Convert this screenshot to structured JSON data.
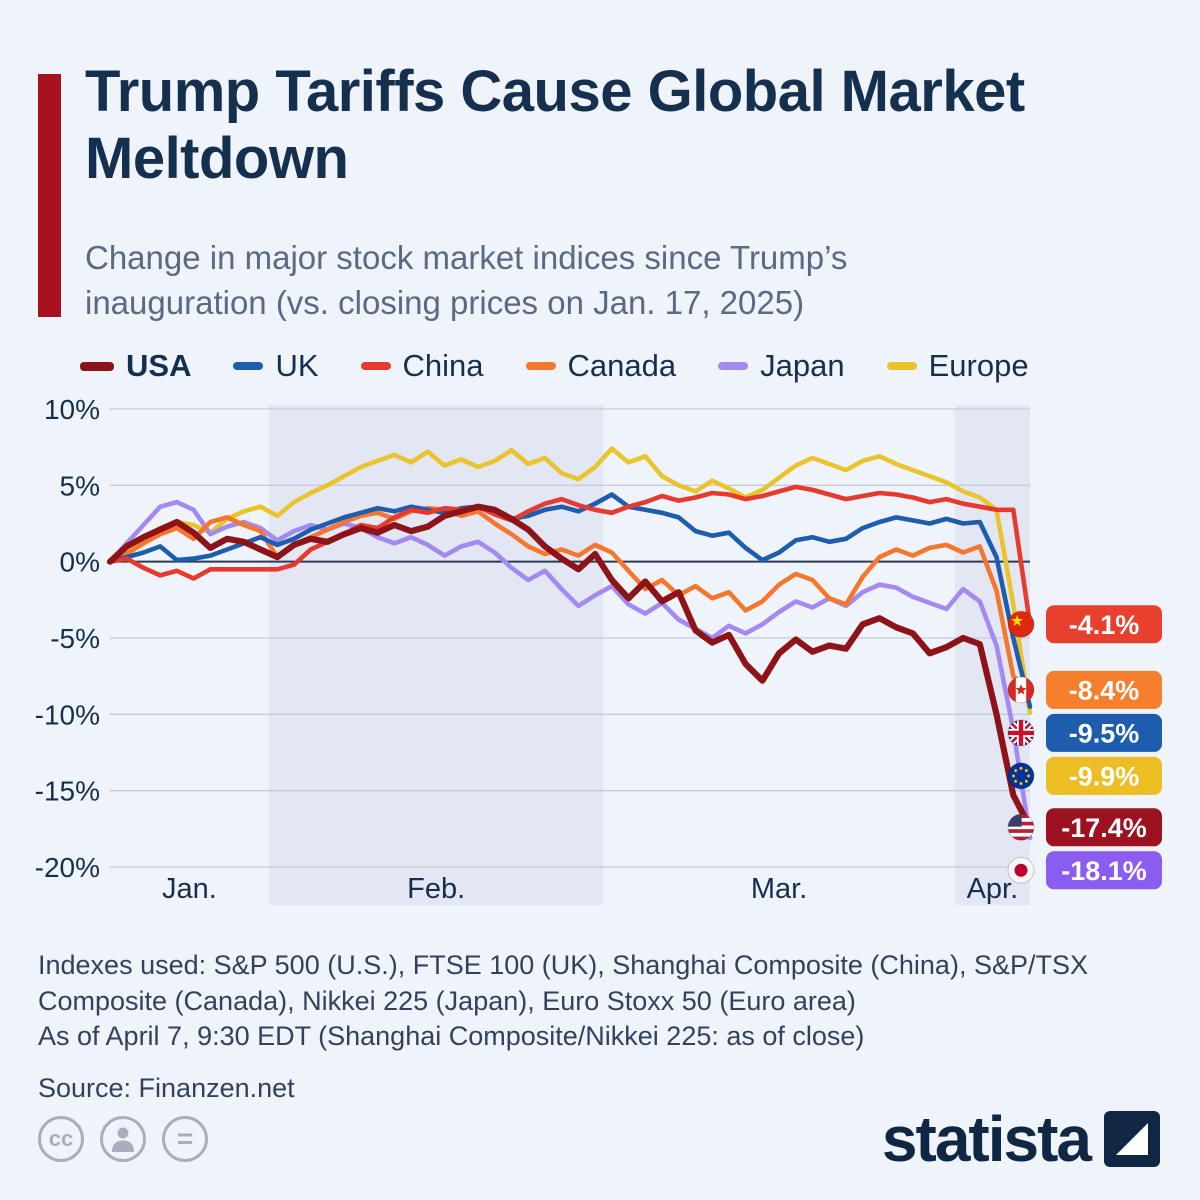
{
  "header": {
    "title": "Trump Tariffs Cause Global Market Meltdown",
    "subtitle": "Change in major stock market indices since Trump’s inauguration (vs. closing prices on Jan. 17, 2025)",
    "accent_color": "#A6101F"
  },
  "legend": [
    {
      "label": "USA",
      "color": "#8C1418",
      "bold": true
    },
    {
      "label": "UK",
      "color": "#1E5CAD",
      "bold": false
    },
    {
      "label": "China",
      "color": "#E63A2E",
      "bold": false
    },
    {
      "label": "Canada",
      "color": "#F5772E",
      "bold": false
    },
    {
      "label": "Japan",
      "color": "#A489F0",
      "bold": false
    },
    {
      "label": "Europe",
      "color": "#E9C42D",
      "bold": false
    }
  ],
  "chart_data": {
    "type": "line",
    "title": "Trump Tariffs Cause Global Market Meltdown",
    "xlabel": "",
    "ylabel": "",
    "unit": "%",
    "ylim": [
      -20,
      10
    ],
    "grid": true,
    "legend_position": "top",
    "band_color": "#E3E7F4",
    "grid_color": "#C5CBDA",
    "zero_line_color": "#2B3A55",
    "tick_text_color": "#15304E",
    "y_ticks": [
      {
        "value": 10,
        "label": "10%"
      },
      {
        "value": 5,
        "label": "5%"
      },
      {
        "value": 0,
        "label": "0%"
      },
      {
        "value": -5,
        "label": "-5%"
      },
      {
        "value": -10,
        "label": "-10%"
      },
      {
        "value": -15,
        "label": "-15%"
      },
      {
        "value": -20,
        "label": "-20%"
      }
    ],
    "months": [
      {
        "label": "Jan.",
        "start": 0,
        "end": 10,
        "shaded": false
      },
      {
        "label": "Feb.",
        "start": 10,
        "end": 30,
        "shaded": true
      },
      {
        "label": "Mar.",
        "start": 30,
        "end": 51,
        "shaded": false
      },
      {
        "label": "Apr.",
        "start": 51,
        "end": 56,
        "shaded": true
      }
    ],
    "series": [
      {
        "name": "USA",
        "color": "#8C1418",
        "emphasis": true,
        "flag": "usa",
        "final_value": -17.4,
        "badge": {
          "text": "-17.4%",
          "color": "#9C1220",
          "text_color": "#FFFFFF"
        },
        "values": [
          0.0,
          1.0,
          1.6,
          2.1,
          2.6,
          1.9,
          0.9,
          1.5,
          1.3,
          0.8,
          0.3,
          1.1,
          1.5,
          1.3,
          1.8,
          2.2,
          1.9,
          2.4,
          2.0,
          2.3,
          3.0,
          3.3,
          3.6,
          3.4,
          2.8,
          2.1,
          1.0,
          0.2,
          -0.5,
          0.5,
          -1.2,
          -2.4,
          -1.3,
          -2.6,
          -2.0,
          -4.5,
          -5.3,
          -4.8,
          -6.7,
          -7.8,
          -6.0,
          -5.1,
          -5.9,
          -5.5,
          -5.7,
          -4.1,
          -3.7,
          -4.3,
          -4.7,
          -6.0,
          -5.6,
          -5.0,
          -5.4,
          -10.0,
          -15.3,
          -17.4
        ]
      },
      {
        "name": "UK",
        "color": "#1E5CAD",
        "emphasis": false,
        "flag": "uk",
        "final_value": -9.5,
        "badge": {
          "text": "-9.5%",
          "color": "#1E5CAD",
          "text_color": "#FFFFFF"
        },
        "values": [
          0.0,
          0.3,
          0.6,
          1.0,
          0.1,
          0.2,
          0.4,
          0.8,
          1.2,
          1.6,
          1.1,
          1.5,
          2.1,
          2.5,
          2.9,
          3.2,
          3.5,
          3.3,
          3.6,
          3.4,
          3.2,
          3.5,
          3.6,
          3.2,
          2.8,
          3.0,
          3.4,
          3.6,
          3.3,
          3.8,
          4.4,
          3.6,
          3.4,
          3.2,
          2.9,
          2.0,
          1.7,
          1.9,
          0.9,
          0.1,
          0.6,
          1.4,
          1.6,
          1.3,
          1.5,
          2.2,
          2.6,
          2.9,
          2.7,
          2.5,
          2.8,
          2.5,
          2.6,
          0.3,
          -5.0,
          -9.5
        ]
      },
      {
        "name": "China",
        "color": "#E63A2E",
        "emphasis": false,
        "flag": "china",
        "final_value": -4.1,
        "badge": {
          "text": "-4.1%",
          "color": "#E8402F",
          "text_color": "#FFFFFF"
        },
        "values": [
          0.0,
          0.2,
          -0.4,
          -0.9,
          -0.6,
          -1.1,
          -0.5,
          -0.5,
          -0.5,
          -0.5,
          -0.5,
          -0.2,
          0.8,
          1.3,
          1.8,
          2.4,
          2.2,
          2.9,
          3.4,
          3.2,
          3.5,
          3.4,
          3.6,
          3.1,
          2.7,
          3.3,
          3.8,
          4.1,
          3.7,
          3.4,
          3.2,
          3.6,
          3.9,
          4.3,
          4.0,
          4.2,
          4.5,
          4.4,
          4.1,
          4.3,
          4.6,
          4.9,
          4.7,
          4.4,
          4.1,
          4.3,
          4.5,
          4.4,
          4.2,
          3.9,
          4.1,
          3.8,
          3.6,
          3.4,
          3.4,
          -4.1
        ]
      },
      {
        "name": "Canada",
        "color": "#F5772E",
        "emphasis": false,
        "flag": "canada",
        "final_value": -8.4,
        "badge": {
          "text": "-8.4%",
          "color": "#F57F2D",
          "text_color": "#FFFFFF"
        },
        "values": [
          0.0,
          0.5,
          1.2,
          1.8,
          2.2,
          1.5,
          2.6,
          2.9,
          2.4,
          2.0,
          0.3,
          1.1,
          1.6,
          2.1,
          2.6,
          3.0,
          3.2,
          2.8,
          3.3,
          3.5,
          3.4,
          3.0,
          3.3,
          2.5,
          1.8,
          1.0,
          0.5,
          0.8,
          0.4,
          1.1,
          0.6,
          -0.6,
          -1.8,
          -1.2,
          -2.2,
          -1.6,
          -2.4,
          -2.0,
          -3.2,
          -2.6,
          -1.5,
          -0.8,
          -1.2,
          -2.4,
          -2.8,
          -1.0,
          0.3,
          0.8,
          0.4,
          0.9,
          1.1,
          0.6,
          1.0,
          -1.9,
          -7.5,
          -8.4
        ]
      },
      {
        "name": "Japan",
        "color": "#A489F0",
        "emphasis": false,
        "flag": "japan",
        "final_value": -18.1,
        "badge": {
          "text": "-18.1%",
          "color": "#8A5CF0",
          "text_color": "#FFFFFF"
        },
        "values": [
          0.0,
          1.2,
          2.4,
          3.6,
          3.9,
          3.4,
          1.8,
          2.3,
          2.6,
          2.2,
          1.4,
          2.0,
          2.4,
          2.1,
          2.5,
          2.2,
          1.6,
          1.2,
          1.6,
          1.1,
          0.4,
          1.0,
          1.3,
          0.6,
          -0.4,
          -1.2,
          -0.6,
          -1.8,
          -2.9,
          -2.2,
          -1.6,
          -2.8,
          -3.4,
          -2.7,
          -3.8,
          -4.4,
          -5.0,
          -4.2,
          -4.7,
          -4.1,
          -3.3,
          -2.6,
          -3.0,
          -2.4,
          -2.9,
          -2.0,
          -1.5,
          -1.7,
          -2.3,
          -2.7,
          -3.1,
          -1.8,
          -2.6,
          -5.5,
          -11.0,
          -18.1
        ]
      },
      {
        "name": "Europe",
        "color": "#E9C42D",
        "emphasis": false,
        "flag": "europe",
        "final_value": -9.9,
        "badge": {
          "text": "-9.9%",
          "color": "#ECBE23",
          "text_color": "#FFFFFF"
        },
        "values": [
          0.0,
          0.8,
          1.5,
          2.2,
          2.6,
          2.4,
          1.9,
          2.8,
          3.3,
          3.6,
          3.0,
          3.9,
          4.5,
          5.0,
          5.6,
          6.2,
          6.6,
          7.0,
          6.5,
          7.2,
          6.3,
          6.7,
          6.2,
          6.6,
          7.3,
          6.4,
          6.8,
          5.8,
          5.4,
          6.2,
          7.4,
          6.5,
          6.9,
          5.6,
          5.0,
          4.6,
          5.3,
          4.8,
          4.2,
          4.7,
          5.5,
          6.3,
          6.8,
          6.4,
          6.0,
          6.6,
          6.9,
          6.4,
          6.0,
          5.6,
          5.2,
          4.6,
          4.2,
          3.4,
          -2.8,
          -9.9
        ]
      }
    ]
  },
  "footer": {
    "indexes": "Indexes used: S&P 500 (U.S.), FTSE 100 (UK), Shanghai Composite (China), S&P/TSX Composite (Canada), Nikkei 225 (Japan), Euro Stoxx 50 (Euro area)",
    "as_of": "As of April 7, 9:30 EDT (Shanghai Composite/Nikkei 225: as of close)",
    "source": "Source: Finanzen.net"
  },
  "branding": {
    "logo_text": "statista",
    "cc_label": "cc",
    "equals_label": "="
  }
}
